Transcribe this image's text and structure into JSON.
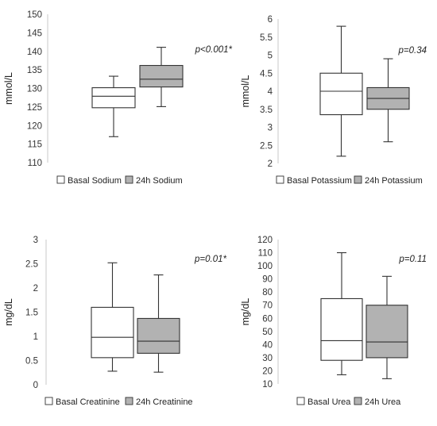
{
  "colors": {
    "basal_fill": "#ffffff",
    "h24_fill": "#b2b2b2",
    "stroke": "#333333"
  },
  "chart_data": [
    {
      "type": "box",
      "ylabel": "mmol/L",
      "yticks": [
        110,
        115,
        120,
        125,
        130,
        135,
        140,
        145,
        150
      ],
      "ylim": [
        110,
        150
      ],
      "annotation": "p<0.001*",
      "series": [
        {
          "name": "Basal Sodium",
          "fill": "basal",
          "min": 117,
          "q1": 124.8,
          "median": 127.9,
          "q3": 130.2,
          "max": 133.3
        },
        {
          "name": "24h Sodium",
          "fill": "h24",
          "min": 125.1,
          "q1": 130.4,
          "median": 132.5,
          "q3": 136.2,
          "max": 141.1
        }
      ]
    },
    {
      "type": "box",
      "ylabel": "mmol/L",
      "yticks": [
        2,
        2.5,
        3,
        3.5,
        4,
        4.5,
        5,
        5.5,
        6
      ],
      "ylim": [
        2,
        6
      ],
      "annotation": "p=0.34",
      "series": [
        {
          "name": "Basal Potassium",
          "fill": "basal",
          "min": 2.2,
          "q1": 3.35,
          "median": 4.0,
          "q3": 4.5,
          "max": 5.8
        },
        {
          "name": "24h Potassium",
          "fill": "h24",
          "min": 2.6,
          "q1": 3.5,
          "median": 3.8,
          "q3": 4.1,
          "max": 4.9
        }
      ]
    },
    {
      "type": "box",
      "ylabel": "mg/dL",
      "yticks": [
        0,
        0.5,
        1,
        1.5,
        2,
        2.5,
        3
      ],
      "ylim": [
        0,
        3
      ],
      "annotation": "p=0.01*",
      "series": [
        {
          "name": "Basal Creatinine",
          "fill": "basal",
          "min": 0.28,
          "q1": 0.56,
          "median": 0.98,
          "q3": 1.6,
          "max": 2.52
        },
        {
          "name": "24h Creatinine",
          "fill": "h24",
          "min": 0.26,
          "q1": 0.65,
          "median": 0.9,
          "q3": 1.37,
          "max": 2.27
        }
      ]
    },
    {
      "type": "box",
      "ylabel": "mg/dL",
      "yticks": [
        10,
        20,
        30,
        40,
        50,
        60,
        70,
        80,
        90,
        100,
        110,
        120
      ],
      "ylim": [
        10,
        120
      ],
      "annotation": "p=0.11",
      "series": [
        {
          "name": "Basal Urea",
          "fill": "basal",
          "min": 17,
          "q1": 28,
          "median": 43,
          "q3": 75,
          "max": 110
        },
        {
          "name": "24h Urea",
          "fill": "h24",
          "min": 14,
          "q1": 30,
          "median": 42,
          "q3": 70,
          "max": 92
        }
      ]
    }
  ]
}
